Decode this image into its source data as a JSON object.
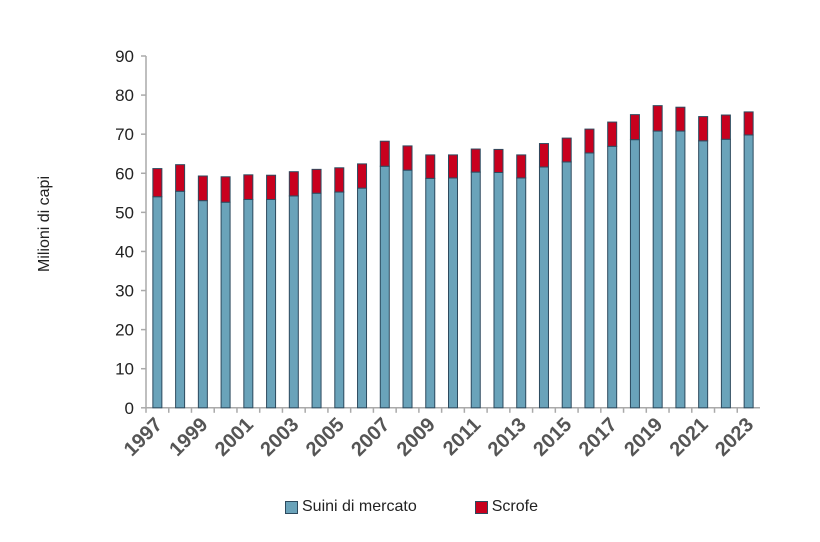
{
  "chart_data": {
    "type": "bar",
    "stacked": true,
    "ylabel": "Milioni di capi",
    "xlabel": "",
    "ylim": [
      0,
      90
    ],
    "yticks": [
      0,
      10,
      20,
      30,
      40,
      50,
      60,
      70,
      80,
      90
    ],
    "categories": [
      "1997",
      "1998",
      "1999",
      "2000",
      "2001",
      "2002",
      "2003",
      "2004",
      "2005",
      "2006",
      "2007",
      "2008",
      "2009",
      "2010",
      "2011",
      "2012",
      "2013",
      "2014",
      "2015",
      "2016",
      "2017",
      "2018",
      "2019",
      "2020",
      "2021",
      "2022",
      "2023"
    ],
    "xtick_labels": [
      "1997",
      "1999",
      "2001",
      "2003",
      "2005",
      "2007",
      "2009",
      "2011",
      "2013",
      "2015",
      "2017",
      "2019",
      "2021",
      "2023"
    ],
    "series": [
      {
        "name": "Suini di mercato",
        "color": "#6aa3ba",
        "values": [
          54.0,
          55.4,
          53.0,
          52.6,
          53.3,
          53.3,
          54.2,
          54.9,
          55.2,
          56.2,
          61.8,
          60.8,
          58.7,
          58.8,
          60.3,
          60.2,
          58.8,
          61.6,
          62.9,
          65.2,
          66.9,
          68.6,
          70.8,
          70.8,
          68.3,
          68.7,
          69.8
        ]
      },
      {
        "name": "Scrofe",
        "color": "#c8001e",
        "values": [
          7.2,
          6.8,
          6.3,
          6.5,
          6.3,
          6.2,
          6.2,
          6.1,
          6.2,
          6.2,
          6.4,
          6.2,
          6.0,
          5.9,
          5.9,
          5.9,
          5.9,
          6.0,
          6.1,
          6.1,
          6.2,
          6.4,
          6.5,
          6.1,
          6.2,
          6.2,
          5.9
        ]
      }
    ],
    "legend_position": "bottom",
    "grid": false
  }
}
